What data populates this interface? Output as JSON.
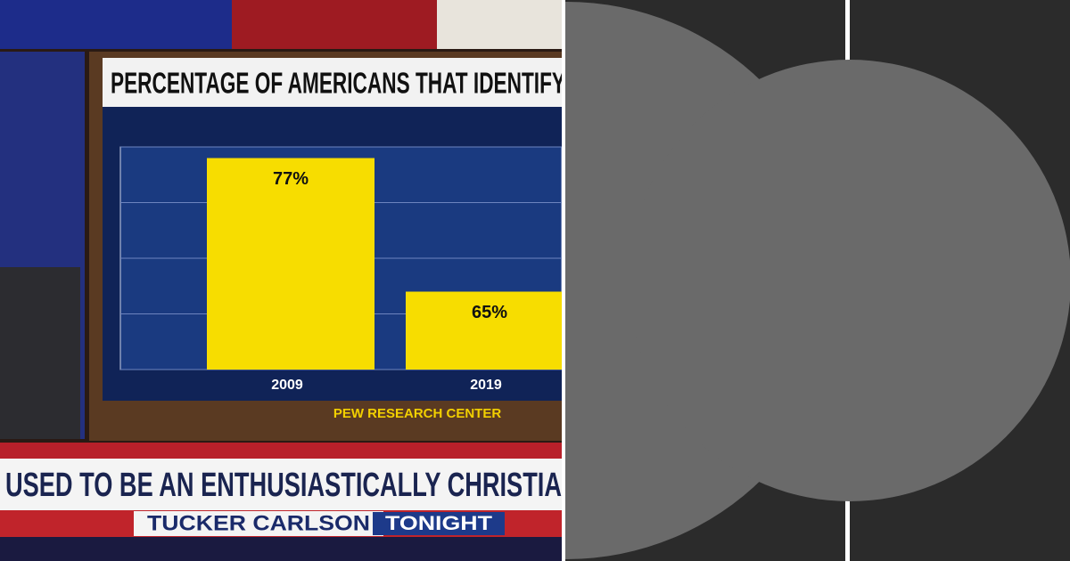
{
  "chart_data": {
    "type": "bar",
    "title": "PERCENTAGE OF AMERICANS THAT IDENTIFY",
    "categories": [
      "2009",
      "2019"
    ],
    "values": [
      77,
      65
    ],
    "value_labels": [
      "77%",
      "65%"
    ],
    "color": "#f7dd00",
    "ylim": [
      58,
      78
    ],
    "yticks": [
      58,
      63,
      68,
      73,
      78
    ],
    "grid": true,
    "source": "PEW RESEARCH CENTER"
  },
  "banner": {
    "headline": "USED TO BE AN ENTHUSIASTICALLY CHRISTIA",
    "show": "TUCKER CARLSON",
    "show_tag": "TONIGHT"
  }
}
